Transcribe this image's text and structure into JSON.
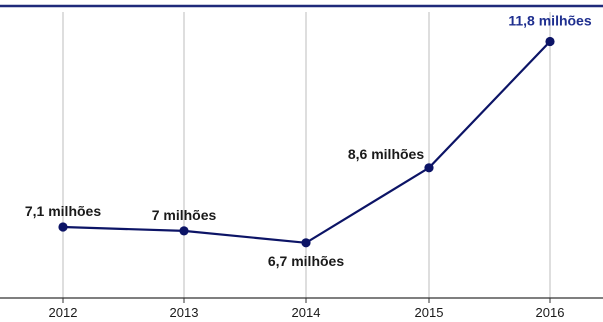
{
  "chart_data": {
    "type": "line",
    "categories": [
      "2012",
      "2013",
      "2014",
      "2015",
      "2016"
    ],
    "values": [
      7.1,
      7.0,
      6.7,
      8.6,
      11.8
    ],
    "data_labels": [
      "7,1 milhões",
      "7 milhões",
      "6,7 milhões",
      "8,6 milhões",
      "11,8 milhões"
    ],
    "highlight_index": 4,
    "ylim": [
      5.3,
      12.7
    ],
    "grid": "vertical",
    "title": "",
    "xlabel": "",
    "ylabel": "",
    "colors": {
      "line": "#0c1466",
      "top_rule": "#1f2a7a",
      "grid": "#bdbdbd",
      "axis": "#333333",
      "highlight_label": "#1f2f8f"
    }
  }
}
